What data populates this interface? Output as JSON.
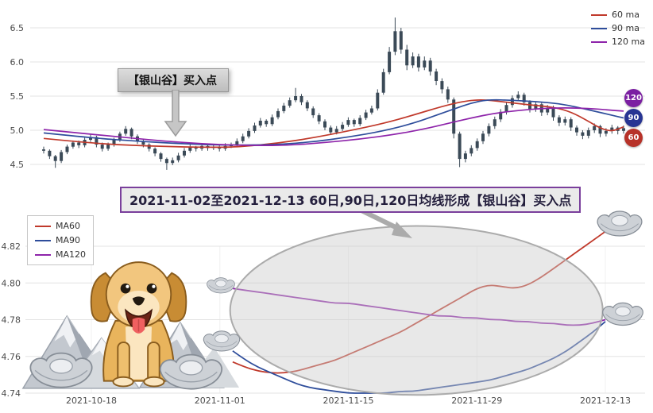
{
  "page": {
    "background": "#ffffff"
  },
  "top_chart": {
    "legend": [
      {
        "label": "60 ma",
        "color": "#c0392b"
      },
      {
        "label": "90 ma",
        "color": "#2e4d9b"
      },
      {
        "label": "120 ma",
        "color": "#8e24aa"
      }
    ],
    "annotation": {
      "text": "【银山谷】买入点"
    },
    "badges": [
      {
        "label": "120",
        "color": "#7b1fa2"
      },
      {
        "label": "90",
        "color": "#283593"
      },
      {
        "label": "60",
        "color": "#b73229"
      }
    ],
    "y_tick_labels": [
      "4.5",
      "5.0",
      "5.5",
      "6.0",
      "6.5"
    ]
  },
  "banner": {
    "text": "2021-11-02至2021-12-13 60日,90日,120日均线形成【银山谷】买入点"
  },
  "bottom_chart": {
    "legend": [
      {
        "label": "MA60",
        "color": "#c0392b"
      },
      {
        "label": "MA90",
        "color": "#2e4d9b"
      },
      {
        "label": "MA120",
        "color": "#8e24aa"
      }
    ],
    "x_tick_labels": [
      "2021-10-18",
      "2021-11-01",
      "2021-11-15",
      "2021-11-29",
      "2021-12-13"
    ],
    "y_tick_labels": [
      "4.74",
      "4.76",
      "4.78",
      "4.80",
      "4.82"
    ]
  },
  "decorations": [
    "golden-retriever-puppy",
    "silver-mountains",
    "silver-ingots"
  ],
  "chart_data": [
    {
      "id": "top",
      "type": "candlestick",
      "ylim": [
        4.35,
        6.75
      ],
      "y_ticks": [
        4.5,
        5.0,
        5.5,
        6.0,
        6.5
      ],
      "grid": true,
      "legend_position": "top-right",
      "candle_color": "#3b4a57",
      "candles": [
        [
          4.72,
          4.76,
          4.66,
          4.7
        ],
        [
          4.7,
          4.72,
          4.58,
          4.62
        ],
        [
          4.62,
          4.64,
          4.45,
          4.55
        ],
        [
          4.55,
          4.71,
          4.52,
          4.68
        ],
        [
          4.68,
          4.79,
          4.65,
          4.76
        ],
        [
          4.76,
          4.85,
          4.73,
          4.82
        ],
        [
          4.82,
          4.85,
          4.74,
          4.78
        ],
        [
          4.78,
          4.89,
          4.75,
          4.86
        ],
        [
          4.86,
          4.94,
          4.83,
          4.9
        ],
        [
          4.9,
          4.92,
          4.75,
          4.79
        ],
        [
          4.79,
          4.82,
          4.69,
          4.73
        ],
        [
          4.73,
          4.82,
          4.7,
          4.79
        ],
        [
          4.79,
          4.89,
          4.76,
          4.86
        ],
        [
          4.86,
          4.98,
          4.83,
          4.95
        ],
        [
          4.95,
          5.06,
          4.92,
          5.02
        ],
        [
          5.02,
          5.04,
          4.87,
          4.91
        ],
        [
          4.91,
          4.94,
          4.8,
          4.84
        ],
        [
          4.84,
          4.87,
          4.75,
          4.79
        ],
        [
          4.79,
          4.81,
          4.69,
          4.73
        ],
        [
          4.73,
          4.75,
          4.62,
          4.66
        ],
        [
          4.66,
          4.68,
          4.54,
          4.58
        ],
        [
          4.58,
          4.6,
          4.42,
          4.52
        ],
        [
          4.52,
          4.6,
          4.49,
          4.56
        ],
        [
          4.56,
          4.67,
          4.53,
          4.63
        ],
        [
          4.63,
          4.74,
          4.6,
          4.7
        ],
        [
          4.7,
          4.79,
          4.67,
          4.75
        ],
        [
          4.75,
          4.77,
          4.69,
          4.73
        ],
        [
          4.73,
          4.81,
          4.7,
          4.77
        ],
        [
          4.77,
          4.79,
          4.7,
          4.74
        ],
        [
          4.74,
          4.8,
          4.71,
          4.76
        ],
        [
          4.76,
          4.78,
          4.69,
          4.73
        ],
        [
          4.73,
          4.81,
          4.7,
          4.77
        ],
        [
          4.77,
          4.82,
          4.74,
          4.78
        ],
        [
          4.78,
          4.88,
          4.75,
          4.84
        ],
        [
          4.84,
          4.95,
          4.81,
          4.91
        ],
        [
          4.91,
          5.03,
          4.88,
          4.99
        ],
        [
          4.99,
          5.11,
          4.96,
          5.07
        ],
        [
          5.07,
          5.18,
          5.04,
          5.14
        ],
        [
          5.14,
          5.16,
          5.05,
          5.09
        ],
        [
          5.09,
          5.23,
          5.06,
          5.19
        ],
        [
          5.19,
          5.32,
          5.16,
          5.28
        ],
        [
          5.28,
          5.4,
          5.25,
          5.36
        ],
        [
          5.36,
          5.48,
          5.33,
          5.44
        ],
        [
          5.44,
          5.62,
          5.41,
          5.5
        ],
        [
          5.5,
          5.53,
          5.37,
          5.41
        ],
        [
          5.41,
          5.44,
          5.28,
          5.32
        ],
        [
          5.32,
          5.35,
          5.18,
          5.22
        ],
        [
          5.22,
          5.25,
          5.09,
          5.13
        ],
        [
          5.13,
          5.16,
          5.0,
          5.04
        ],
        [
          5.04,
          5.07,
          4.93,
          4.97
        ],
        [
          4.97,
          5.06,
          4.94,
          5.02
        ],
        [
          5.02,
          5.12,
          4.99,
          5.08
        ],
        [
          5.08,
          5.19,
          5.05,
          5.15
        ],
        [
          5.15,
          5.17,
          5.05,
          5.09
        ],
        [
          5.09,
          5.22,
          5.06,
          5.18
        ],
        [
          5.18,
          5.3,
          5.15,
          5.26
        ],
        [
          5.26,
          5.36,
          5.23,
          5.32
        ],
        [
          5.32,
          5.6,
          5.29,
          5.55
        ],
        [
          5.55,
          5.9,
          5.52,
          5.85
        ],
        [
          5.85,
          6.22,
          5.82,
          6.15
        ],
        [
          6.15,
          6.65,
          6.1,
          6.45
        ],
        [
          6.45,
          6.5,
          6.12,
          6.18
        ],
        [
          6.18,
          6.25,
          5.88,
          5.95
        ],
        [
          5.95,
          6.14,
          5.91,
          6.08
        ],
        [
          6.08,
          6.12,
          5.86,
          5.92
        ],
        [
          5.92,
          6.08,
          5.88,
          6.02
        ],
        [
          6.02,
          6.06,
          5.8,
          5.86
        ],
        [
          5.86,
          5.9,
          5.66,
          5.72
        ],
        [
          5.72,
          5.76,
          5.54,
          5.6
        ],
        [
          5.6,
          5.64,
          5.4,
          5.45
        ],
        [
          5.45,
          5.48,
          4.88,
          4.95
        ],
        [
          4.95,
          4.98,
          4.46,
          4.58
        ],
        [
          4.58,
          4.7,
          4.53,
          4.66
        ],
        [
          4.66,
          4.78,
          4.62,
          4.74
        ],
        [
          4.74,
          4.88,
          4.7,
          4.84
        ],
        [
          4.84,
          4.99,
          4.8,
          4.95
        ],
        [
          4.95,
          5.1,
          4.91,
          5.06
        ],
        [
          5.06,
          5.2,
          5.02,
          5.16
        ],
        [
          5.16,
          5.31,
          5.12,
          5.27
        ],
        [
          5.27,
          5.41,
          5.23,
          5.37
        ],
        [
          5.37,
          5.51,
          5.33,
          5.47
        ],
        [
          5.47,
          5.57,
          5.43,
          5.52
        ],
        [
          5.52,
          5.55,
          5.36,
          5.41
        ],
        [
          5.41,
          5.44,
          5.26,
          5.31
        ],
        [
          5.31,
          5.42,
          5.27,
          5.38
        ],
        [
          5.38,
          5.41,
          5.21,
          5.26
        ],
        [
          5.26,
          5.37,
          5.22,
          5.33
        ],
        [
          5.33,
          5.36,
          5.14,
          5.19
        ],
        [
          5.19,
          5.22,
          5.06,
          5.11
        ],
        [
          5.11,
          5.2,
          5.07,
          5.16
        ],
        [
          5.16,
          5.19,
          4.99,
          5.04
        ],
        [
          5.04,
          5.07,
          4.92,
          4.97
        ],
        [
          4.97,
          5.0,
          4.87,
          4.92
        ],
        [
          4.92,
          5.04,
          4.88,
          5.0
        ],
        [
          5.0,
          5.1,
          4.96,
          5.06
        ],
        [
          5.06,
          5.08,
          4.9,
          4.95
        ],
        [
          4.95,
          5.03,
          4.91,
          4.99
        ],
        [
          4.99,
          5.08,
          4.95,
          5.04
        ],
        [
          5.04,
          5.06,
          4.94,
          4.99
        ],
        [
          4.99,
          5.07,
          4.95,
          5.03
        ]
      ],
      "ma_series": [
        {
          "name": "60 ma",
          "color": "#c0392b",
          "points": [
            [
              0,
              4.88
            ],
            [
              6,
              4.83
            ],
            [
              12,
              4.79
            ],
            [
              18,
              4.77
            ],
            [
              24,
              4.755
            ],
            [
              30,
              4.75
            ],
            [
              34,
              4.76
            ],
            [
              40,
              4.81
            ],
            [
              46,
              4.89
            ],
            [
              52,
              4.99
            ],
            [
              58,
              5.1
            ],
            [
              63,
              5.22
            ],
            [
              68,
              5.35
            ],
            [
              72,
              5.43
            ],
            [
              75,
              5.45
            ],
            [
              79,
              5.41
            ],
            [
              83,
              5.37
            ],
            [
              87,
              5.34
            ],
            [
              90,
              5.27
            ],
            [
              93,
              5.13
            ],
            [
              95,
              5.03
            ],
            [
              97,
              4.98
            ],
            [
              99,
              5.05
            ]
          ]
        },
        {
          "name": "90 ma",
          "color": "#2e4d9b",
          "points": [
            [
              0,
              4.96
            ],
            [
              8,
              4.89
            ],
            [
              16,
              4.84
            ],
            [
              24,
              4.8
            ],
            [
              32,
              4.78
            ],
            [
              40,
              4.79
            ],
            [
              46,
              4.83
            ],
            [
              52,
              4.9
            ],
            [
              58,
              4.99
            ],
            [
              63,
              5.1
            ],
            [
              67,
              5.22
            ],
            [
              70,
              5.31
            ],
            [
              73,
              5.4
            ],
            [
              76,
              5.45
            ],
            [
              80,
              5.44
            ],
            [
              84,
              5.42
            ],
            [
              88,
              5.39
            ],
            [
              91,
              5.34
            ],
            [
              94,
              5.28
            ],
            [
              97,
              5.22
            ],
            [
              99,
              5.18
            ]
          ]
        },
        {
          "name": "120 ma",
          "color": "#8e24aa",
          "points": [
            [
              0,
              5.01
            ],
            [
              6,
              4.96
            ],
            [
              12,
              4.91
            ],
            [
              18,
              4.86
            ],
            [
              24,
              4.82
            ],
            [
              30,
              4.79
            ],
            [
              36,
              4.775
            ],
            [
              42,
              4.78
            ],
            [
              48,
              4.82
            ],
            [
              54,
              4.87
            ],
            [
              60,
              4.94
            ],
            [
              65,
              5.02
            ],
            [
              69,
              5.1
            ],
            [
              73,
              5.18
            ],
            [
              77,
              5.25
            ],
            [
              81,
              5.29
            ],
            [
              85,
              5.32
            ],
            [
              89,
              5.33
            ],
            [
              93,
              5.32
            ],
            [
              96,
              5.3
            ],
            [
              99,
              5.28
            ]
          ]
        }
      ]
    },
    {
      "id": "bottom",
      "type": "line",
      "ylim": [
        4.735,
        4.835
      ],
      "y_ticks": [
        4.74,
        4.76,
        4.78,
        4.8,
        4.82
      ],
      "x_ticks": [
        {
          "t": 0,
          "label": "2021-10-18"
        },
        {
          "t": 10,
          "label": "2021-11-01"
        },
        {
          "t": 20,
          "label": "2021-11-15"
        },
        {
          "t": 30,
          "label": "2021-11-29"
        },
        {
          "t": 40,
          "label": "2021-12-13"
        }
      ],
      "start_t": 11,
      "grid": true,
      "legend_position": "top-left",
      "series": [
        {
          "name": "MA60",
          "color": "#c0392b",
          "values": [
            4.757,
            4.754,
            4.752,
            4.751,
            4.751,
            4.752,
            4.754,
            4.756,
            4.758,
            4.761,
            4.764,
            4.767,
            4.77,
            4.773,
            4.777,
            4.781,
            4.785,
            4.789,
            4.793,
            4.797,
            4.799,
            4.798,
            4.797,
            4.799,
            4.803,
            4.808,
            4.813,
            4.818,
            4.823,
            4.828
          ]
        },
        {
          "name": "MA90",
          "color": "#2e4d9b",
          "values": [
            4.763,
            4.758,
            4.754,
            4.751,
            4.748,
            4.745,
            4.743,
            4.742,
            4.741,
            4.74,
            4.74,
            4.74,
            4.74,
            4.741,
            4.741,
            4.742,
            4.743,
            4.744,
            4.745,
            4.746,
            4.747,
            4.749,
            4.751,
            4.753,
            4.756,
            4.759,
            4.763,
            4.768,
            4.773,
            4.779
          ]
        },
        {
          "name": "MA120",
          "color": "#8e24aa",
          "values": [
            4.797,
            4.796,
            4.795,
            4.794,
            4.793,
            4.792,
            4.791,
            4.79,
            4.789,
            4.789,
            4.788,
            4.787,
            4.786,
            4.785,
            4.784,
            4.783,
            4.782,
            4.782,
            4.781,
            4.781,
            4.78,
            4.78,
            4.779,
            4.779,
            4.778,
            4.778,
            4.777,
            4.777,
            4.778,
            4.78
          ]
        }
      ],
      "highlight_ellipse": {
        "cx_t": 25.3,
        "cy_v": 4.785,
        "rx_t": 14.5,
        "ry_v": 0.046
      }
    }
  ]
}
